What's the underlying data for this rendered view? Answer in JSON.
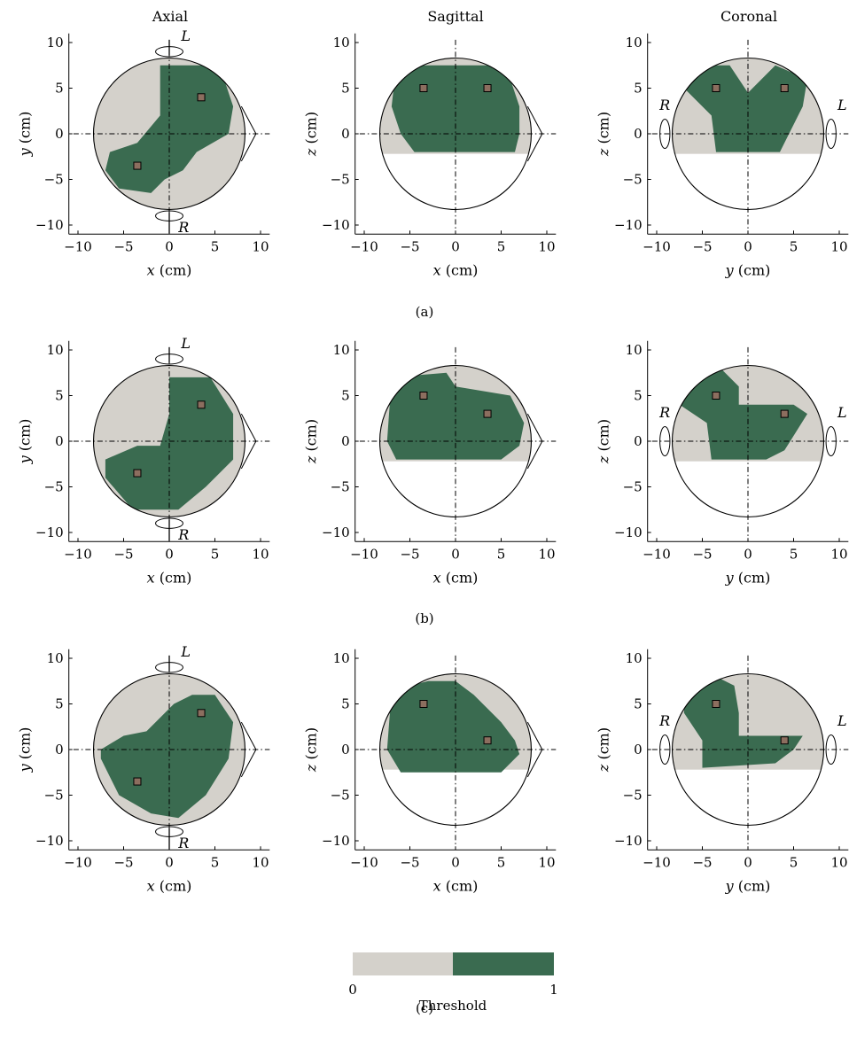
{
  "column_titles": [
    "Axial",
    "Sagittal",
    "Coronal"
  ],
  "panel_labels": [
    "(a)",
    "(b)",
    "(c)"
  ],
  "colorbar": {
    "label": "Threshold",
    "min_label": "0",
    "max_label": "1",
    "colors": [
      "#d4d1cb",
      "#3a6b50"
    ]
  },
  "chart_data": [
    {
      "type": "heatmap",
      "title": "Axial",
      "row_label": "(a)",
      "xlabel": "x (cm)",
      "ylabel": "y (cm)",
      "xlim": [
        -11,
        11
      ],
      "ylim": [
        -11,
        11
      ],
      "xticks": [
        -10,
        -5,
        0,
        5,
        10
      ],
      "yticks": [
        -10,
        -5,
        0,
        5,
        10
      ],
      "side_labels": [
        "L",
        "R"
      ],
      "markers": [
        [
          3.5,
          4
        ],
        [
          -3.5,
          -3.5
        ]
      ],
      "regions": {
        "below_threshold": "gray",
        "above_threshold": "green"
      }
    },
    {
      "type": "heatmap",
      "title": "Sagittal",
      "row_label": "(a)",
      "xlabel": "x (cm)",
      "ylabel": "z (cm)",
      "xlim": [
        -11,
        11
      ],
      "ylim": [
        -11,
        11
      ],
      "xticks": [
        -10,
        -5,
        0,
        5,
        10
      ],
      "yticks": [
        -10,
        -5,
        0,
        5,
        10
      ],
      "markers": [
        [
          -3.5,
          5
        ],
        [
          3.5,
          5
        ]
      ]
    },
    {
      "type": "heatmap",
      "title": "Coronal",
      "row_label": "(a)",
      "xlabel": "y (cm)",
      "ylabel": "z (cm)",
      "xlim": [
        -11,
        11
      ],
      "ylim": [
        -11,
        11
      ],
      "xticks": [
        -10,
        -5,
        0,
        5,
        10
      ],
      "yticks": [
        -10,
        -5,
        0,
        5,
        10
      ],
      "side_labels": [
        "R",
        "L"
      ],
      "markers": [
        [
          -3.5,
          5
        ],
        [
          4,
          5
        ]
      ]
    },
    {
      "type": "heatmap",
      "title": "Axial",
      "row_label": "(b)",
      "xlabel": "x (cm)",
      "ylabel": "y (cm)",
      "xlim": [
        -11,
        11
      ],
      "ylim": [
        -11,
        11
      ],
      "xticks": [
        -10,
        -5,
        0,
        5,
        10
      ],
      "yticks": [
        -10,
        -5,
        0,
        5,
        10
      ],
      "side_labels": [
        "L",
        "R"
      ],
      "markers": [
        [
          3.5,
          4
        ],
        [
          -3.5,
          -3.5
        ]
      ]
    },
    {
      "type": "heatmap",
      "title": "Sagittal",
      "row_label": "(b)",
      "xlabel": "x (cm)",
      "ylabel": "z (cm)",
      "xlim": [
        -11,
        11
      ],
      "ylim": [
        -11,
        11
      ],
      "xticks": [
        -10,
        -5,
        0,
        5,
        10
      ],
      "yticks": [
        -10,
        -5,
        0,
        5,
        10
      ],
      "markers": [
        [
          -3.5,
          5
        ],
        [
          3.5,
          3
        ]
      ]
    },
    {
      "type": "heatmap",
      "title": "Coronal",
      "row_label": "(b)",
      "xlabel": "y (cm)",
      "ylabel": "z (cm)",
      "xlim": [
        -11,
        11
      ],
      "ylim": [
        -11,
        11
      ],
      "xticks": [
        -10,
        -5,
        0,
        5,
        10
      ],
      "yticks": [
        -10,
        -5,
        0,
        5,
        10
      ],
      "side_labels": [
        "R",
        "L"
      ],
      "markers": [
        [
          -3.5,
          5
        ],
        [
          4,
          3
        ]
      ]
    },
    {
      "type": "heatmap",
      "title": "Axial",
      "row_label": "(c)",
      "xlabel": "x (cm)",
      "ylabel": "y (cm)",
      "xlim": [
        -11,
        11
      ],
      "ylim": [
        -11,
        11
      ],
      "xticks": [
        -10,
        -5,
        0,
        5,
        10
      ],
      "yticks": [
        -10,
        -5,
        0,
        5,
        10
      ],
      "side_labels": [
        "L",
        "R"
      ],
      "markers": [
        [
          3.5,
          4
        ],
        [
          -3.5,
          -3.5
        ]
      ]
    },
    {
      "type": "heatmap",
      "title": "Sagittal",
      "row_label": "(c)",
      "xlabel": "x (cm)",
      "ylabel": "z (cm)",
      "xlim": [
        -11,
        11
      ],
      "ylim": [
        -11,
        11
      ],
      "xticks": [
        -10,
        -5,
        0,
        5,
        10
      ],
      "yticks": [
        -10,
        -5,
        0,
        5,
        10
      ],
      "markers": [
        [
          -3.5,
          5
        ],
        [
          3.5,
          1
        ]
      ]
    },
    {
      "type": "heatmap",
      "title": "Coronal",
      "row_label": "(c)",
      "xlabel": "y (cm)",
      "ylabel": "z (cm)",
      "xlim": [
        -11,
        11
      ],
      "ylim": [
        -11,
        11
      ],
      "xticks": [
        -10,
        -5,
        0,
        5,
        10
      ],
      "yticks": [
        -10,
        -5,
        0,
        5,
        10
      ],
      "side_labels": [
        "R",
        "L"
      ],
      "markers": [
        [
          -3.5,
          5
        ],
        [
          4,
          1
        ]
      ]
    }
  ]
}
